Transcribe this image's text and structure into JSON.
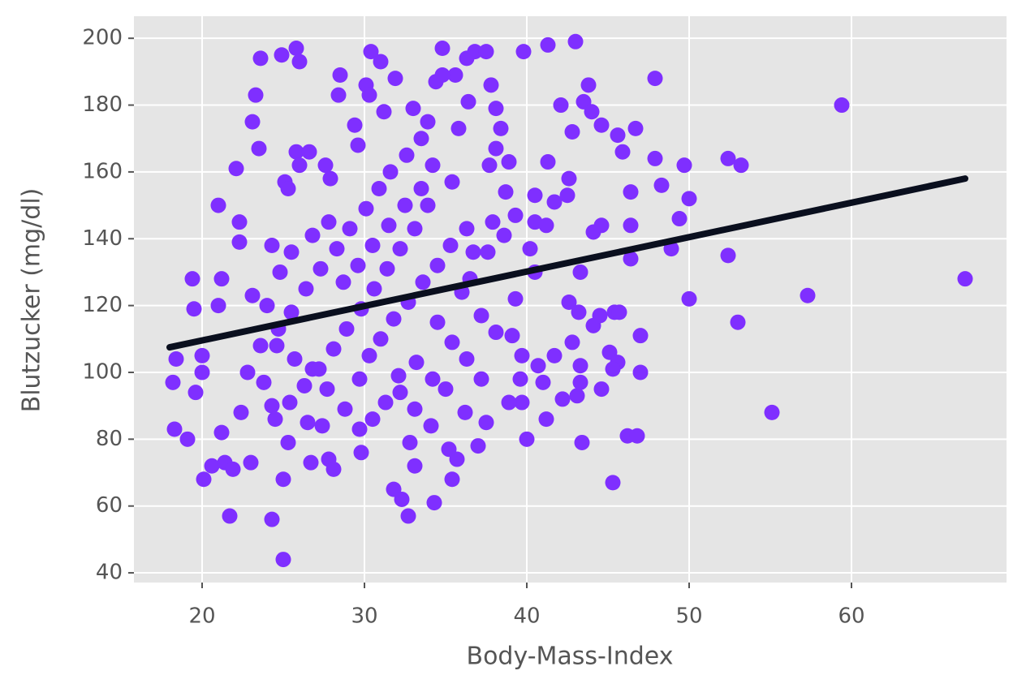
{
  "chart_data": {
    "type": "scatter",
    "x_label": "Body-Mass-Index",
    "y_label": "Blutzucker (mg/dl)",
    "xlim": [
      15.8,
      69.55
    ],
    "ylim": [
      37.1,
      206.6
    ],
    "xticks": [
      20,
      30,
      40,
      50,
      60
    ],
    "yticks": [
      40,
      60,
      80,
      100,
      120,
      140,
      160,
      180,
      200
    ],
    "grid": true,
    "series": [
      {
        "type": "scatter",
        "color": "#7f2fff",
        "x": [
          59.4,
          67,
          57.3,
          55.1,
          53,
          52.4,
          52.4,
          53.2,
          50,
          50,
          49.7,
          48.9,
          49.4,
          48.3,
          47.9,
          47.9,
          45.3,
          46.2,
          46.8,
          47,
          47,
          46.4,
          46.4,
          46.4,
          46.7,
          45.9,
          45.6,
          43,
          41.3,
          39.8,
          43.8,
          43.5,
          42.1,
          42.8,
          44.6,
          44,
          43.4,
          44.6,
          43.1,
          42.2,
          41.2,
          40,
          39.7,
          40.7,
          41,
          41.7,
          42.8,
          43.3,
          43.3,
          42.6,
          43.2,
          43.3,
          44.1,
          44.5,
          45.4,
          45.7,
          45.1,
          45.6,
          45.3,
          44.1,
          44.6,
          42.5,
          42.6,
          41.7,
          41.3,
          40.5,
          40.5,
          41.2,
          40.2,
          40.5,
          18.2,
          18.4,
          18.3,
          19.1,
          19.4,
          19.5,
          19.6,
          20,
          20,
          20.1,
          20.6,
          21,
          21,
          21.2,
          21.2,
          21.4,
          21.7,
          21.9,
          22.1,
          22.3,
          22.3,
          22.4,
          22.8,
          23,
          23.1,
          23.1,
          23.3,
          23.5,
          23.6,
          23.6,
          24,
          24.3,
          24.3,
          24.3,
          25,
          25,
          25.1,
          24.9,
          25.8,
          26,
          25.8,
          26.6,
          26,
          25.3,
          25.3,
          26.5,
          26.7,
          27.4,
          27.8,
          28.1,
          27.9,
          27.6,
          28.4,
          28.5,
          29.4,
          29.6,
          29.8,
          29.7,
          30.1,
          30.3,
          30.4,
          31,
          31.9,
          31.2,
          31.8,
          32.3,
          32.7,
          32.8,
          33.1,
          34.3,
          35.4,
          35.7,
          35.2,
          34.8,
          35.6,
          36.3,
          36.8,
          37.5,
          37.8,
          36.4,
          35.8,
          33,
          33.9,
          34.4,
          34.8,
          38.1,
          38.4,
          38.9,
          38.1,
          37.7,
          38.7,
          39.3,
          37.9,
          38.6,
          37.6,
          36.7,
          36.5,
          36,
          37.2,
          38.1,
          39.3,
          39.1,
          39.7,
          39.6,
          38.9,
          37.5,
          37,
          36.2,
          35,
          34.2,
          33.2,
          32.1,
          31.3,
          30.5,
          29.7,
          28.8,
          27.7,
          26.8,
          25.7,
          24.6,
          23.8,
          24.7,
          25.5,
          26.4,
          27.3,
          28.3,
          29.1,
          30.1,
          30.9,
          31.6,
          32.6,
          33.5,
          33.9,
          33.1,
          32.2,
          31.4,
          30.6,
          29.8,
          28.9,
          28.1,
          27.2,
          26.3,
          25.4,
          24.5,
          26.8,
          27.8,
          25.5,
          24.8,
          30.3,
          31,
          31.8,
          32.7,
          33.6,
          34.5,
          35.3,
          36.3,
          35.4,
          34.2,
          28.7,
          29.6,
          30.5,
          31.5,
          32.5,
          33.5,
          34.5,
          35.4,
          36.3,
          37.2,
          34.1,
          33.1,
          32.2
        ],
        "values": [
          180,
          128,
          123,
          88,
          115,
          135,
          164,
          162,
          122,
          152,
          162,
          137,
          146,
          156,
          188,
          164,
          67,
          81,
          81,
          100,
          111,
          134,
          144,
          154,
          173,
          166,
          171,
          199,
          198,
          196,
          186,
          181,
          180,
          172,
          174,
          178,
          79,
          95,
          93,
          92,
          86,
          80,
          91,
          102,
          97,
          105,
          109,
          102,
          97,
          121,
          118,
          130,
          114,
          117,
          118,
          118,
          106,
          103,
          101,
          142,
          144,
          153,
          158,
          151,
          163,
          153,
          145,
          144,
          137,
          130,
          97,
          104,
          83,
          80,
          128,
          119,
          94,
          100,
          105,
          68,
          72,
          120,
          150,
          128,
          82,
          73,
          57,
          71,
          161,
          139,
          145,
          88,
          100,
          73,
          123,
          175,
          183,
          167,
          194,
          108,
          120,
          90,
          138,
          56,
          44,
          68,
          157,
          195,
          197,
          193,
          166,
          166,
          162,
          155,
          79,
          85,
          73,
          84,
          74,
          71,
          158,
          162,
          183,
          189,
          174,
          168,
          76,
          98,
          186,
          183,
          196,
          193,
          188,
          178,
          65,
          62,
          57,
          79,
          72,
          61,
          68,
          74,
          77,
          197,
          189,
          194,
          196,
          196,
          186,
          181,
          173,
          179,
          175,
          187,
          189,
          179,
          173,
          163,
          167,
          162,
          154,
          147,
          145,
          141,
          136,
          136,
          128,
          124,
          117,
          112,
          122,
          111,
          105,
          98,
          91,
          85,
          78,
          88,
          95,
          98,
          103,
          99,
          91,
          86,
          83,
          89,
          95,
          101,
          104,
          108,
          97,
          113,
          118,
          125,
          131,
          137,
          143,
          149,
          155,
          160,
          165,
          170,
          150,
          143,
          137,
          131,
          125,
          119,
          113,
          107,
          101,
          96,
          91,
          86,
          141,
          145,
          136,
          130,
          105,
          110,
          116,
          121,
          127,
          132,
          138,
          143,
          157,
          162,
          127,
          132,
          138,
          144,
          150,
          155,
          115,
          109,
          104,
          98,
          84,
          89,
          94
        ]
      },
      {
        "type": "line",
        "color": "#0a0f1e",
        "x": [
          18,
          67
        ],
        "values": [
          107.5,
          158
        ]
      }
    ]
  }
}
